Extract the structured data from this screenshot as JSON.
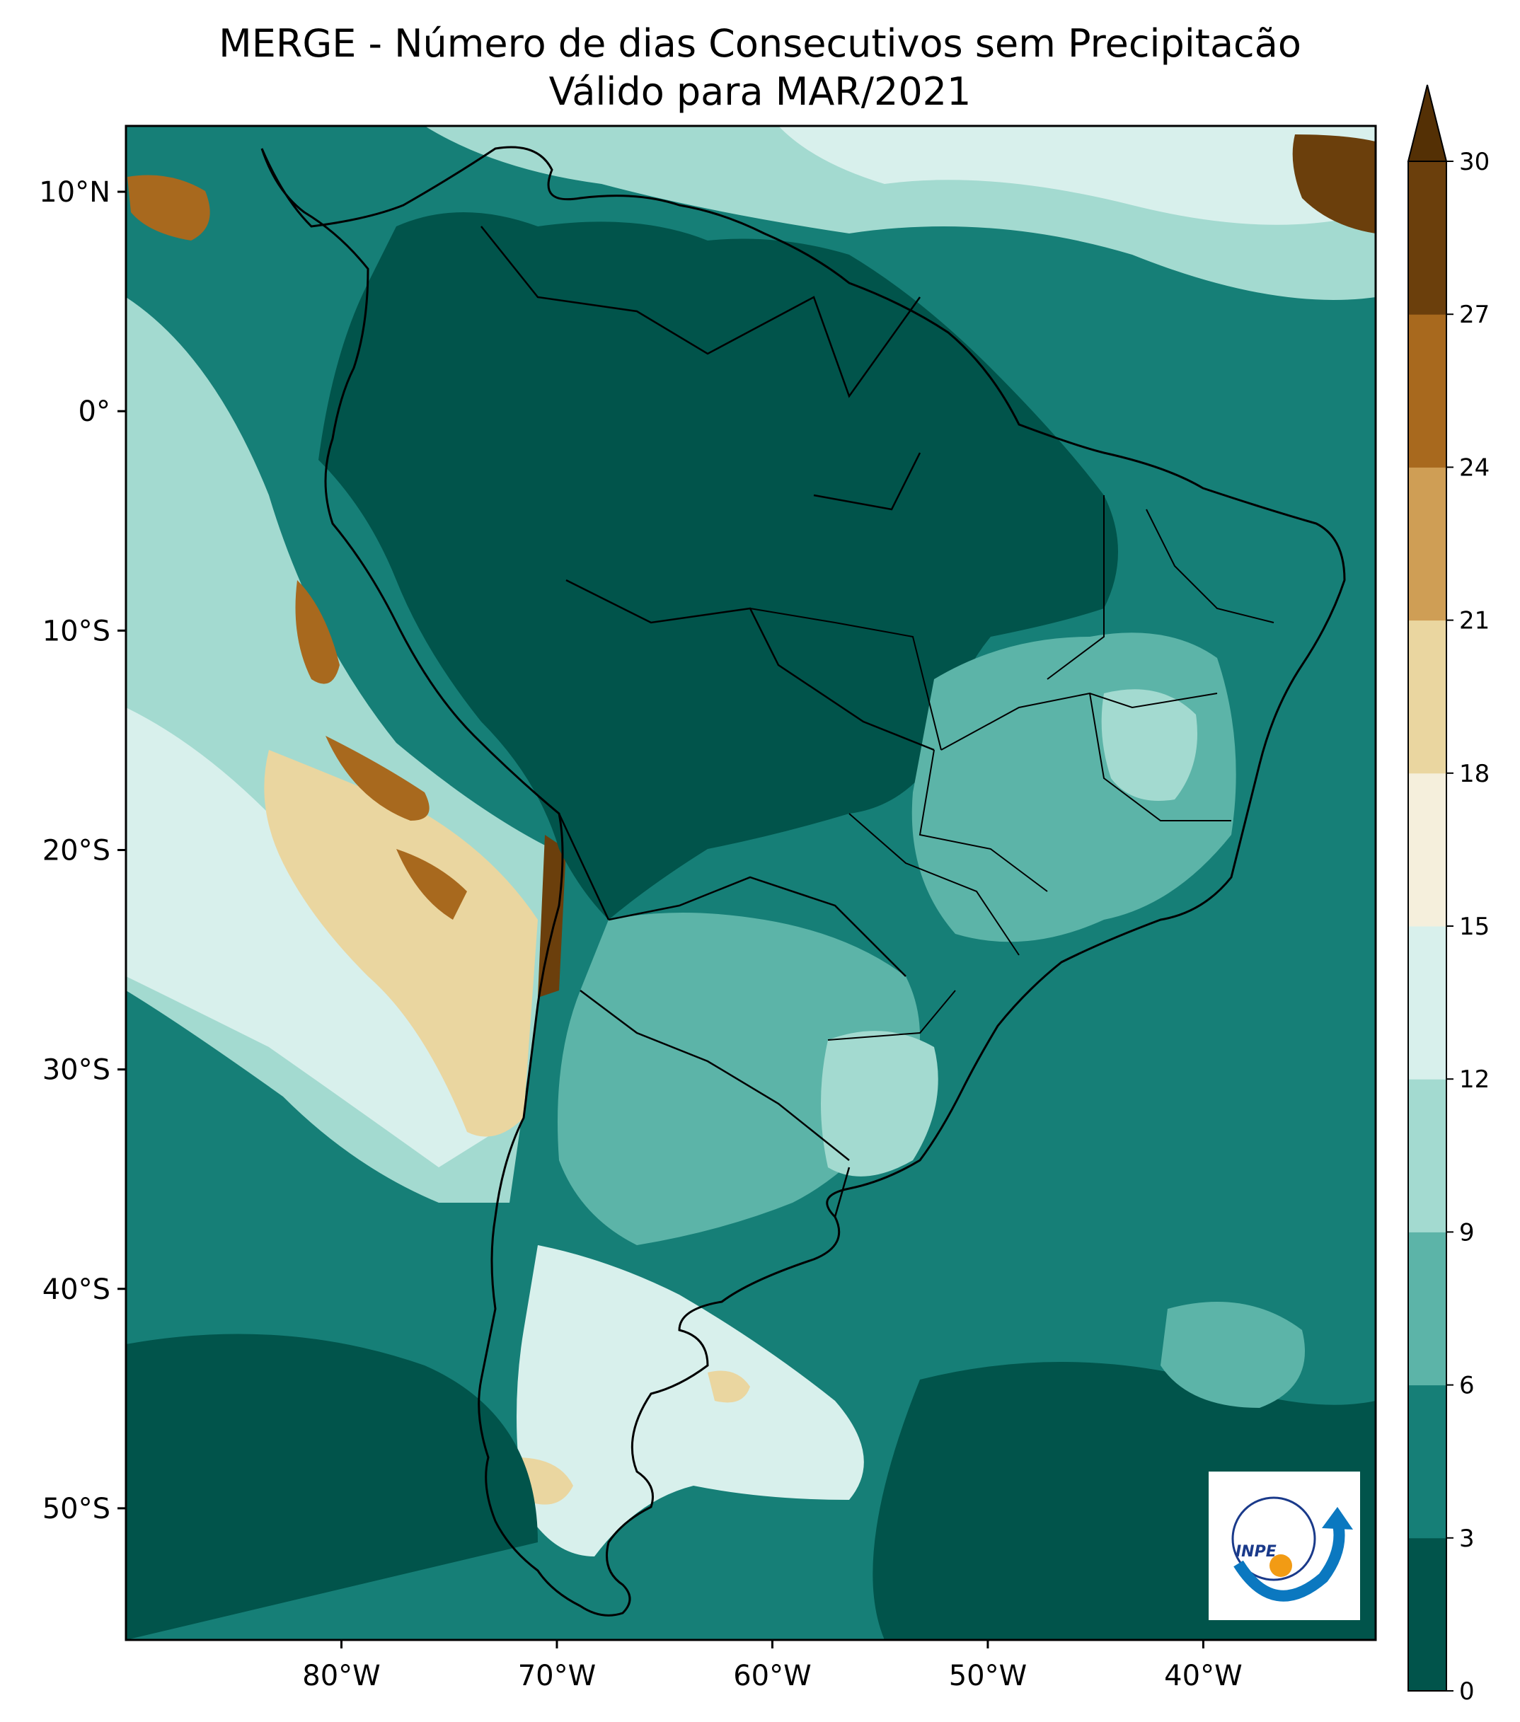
{
  "title": {
    "line1": "MERGE - Número de dias Consecutivos sem Precipitacão",
    "line2": "Válido para MAR/2021"
  },
  "map": {
    "lon_range": [
      -90,
      -32
    ],
    "lat_range": [
      -56,
      13
    ],
    "lon_ticks": [
      "80°W",
      "70°W",
      "60°W",
      "50°W",
      "40°W"
    ],
    "lat_ticks": [
      "10°N",
      "0°",
      "10°S",
      "20°S",
      "30°S",
      "40°S",
      "50°S"
    ],
    "background_dominant": "#01665e"
  },
  "colorbar": {
    "levels": [
      "0",
      "3",
      "6",
      "9",
      "12",
      "15",
      "18",
      "21",
      "24",
      "27",
      "30"
    ],
    "colors": [
      "#01544b",
      "#167f77",
      "#5cb4a8",
      "#a3dad0",
      "#d8f0ec",
      "#f5efdc",
      "#ead6a0",
      "#cf9e55",
      "#a8691e",
      "#6b3f0c"
    ],
    "extend": "max",
    "extend_color": "#543005"
  },
  "logo": {
    "text": "INPE"
  }
}
